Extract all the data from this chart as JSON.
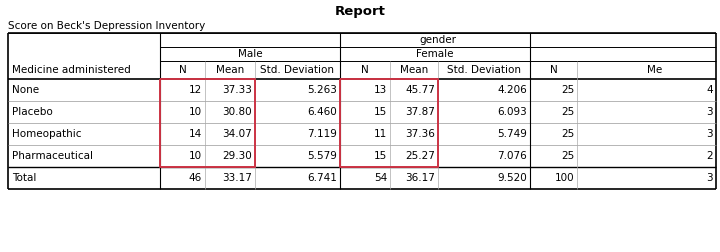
{
  "title": "Report",
  "subtitle": "Score on Beck's Depression Inventory",
  "row_header": "Medicine administered",
  "col_group": "gender",
  "male_label": "Male",
  "female_label": "Female",
  "subgroup_cols": [
    "N",
    "Mean",
    "Std. Deviation"
  ],
  "rows": [
    "None",
    "Placebo",
    "Homeopathic",
    "Pharmaceutical",
    "Total"
  ],
  "male_data": [
    [
      "12",
      "37.33",
      "5.263"
    ],
    [
      "10",
      "30.80",
      "6.460"
    ],
    [
      "14",
      "34.07",
      "7.119"
    ],
    [
      "10",
      "29.30",
      "5.579"
    ],
    [
      "46",
      "33.17",
      "6.741"
    ]
  ],
  "female_data": [
    [
      "13",
      "45.77",
      "4.206"
    ],
    [
      "15",
      "37.87",
      "6.093"
    ],
    [
      "11",
      "37.36",
      "5.749"
    ],
    [
      "15",
      "25.27",
      "7.076"
    ],
    [
      "54",
      "36.17",
      "9.520"
    ]
  ],
  "total_N": [
    "25",
    "25",
    "25",
    "25",
    "100"
  ],
  "total_mean_partial": [
    "4",
    "3",
    "3",
    "2",
    "3"
  ],
  "highlight_color": "#cc3344",
  "bg_color": "#ffffff",
  "font_size": 7.5,
  "title_font_size": 9.5,
  "subtitle_font_size": 7.5
}
